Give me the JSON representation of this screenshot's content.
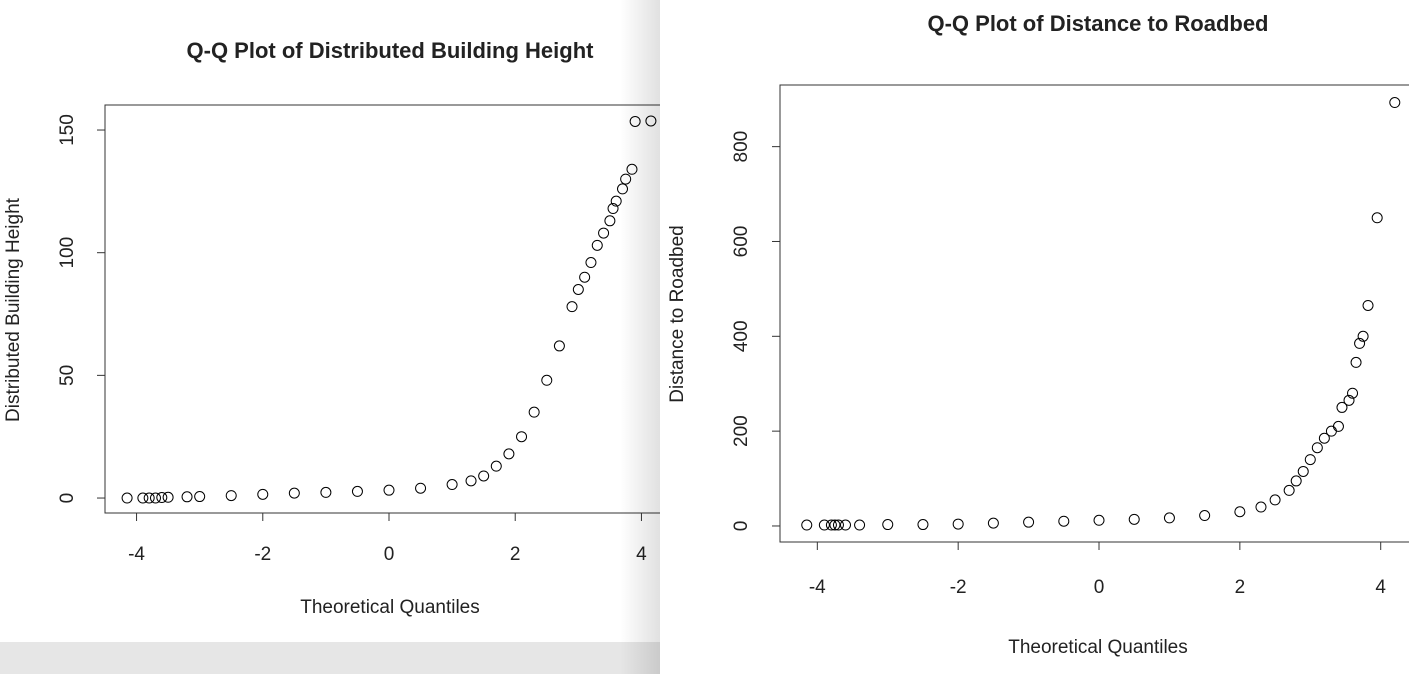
{
  "chart_data": [
    {
      "type": "scatter",
      "title": "Q-Q Plot of Distributed Building Height",
      "x_label": "Theoretical Quantiles",
      "y_label": "Distributed Building Height",
      "color": "#000000",
      "x": [
        -4.15,
        -3.9,
        -3.8,
        -3.7,
        -3.6,
        -3.5,
        -3.2,
        -3,
        -2.5,
        -2,
        -1.5,
        -1,
        -0.5,
        0,
        0.5,
        1,
        1.3,
        1.5,
        1.7,
        1.9,
        2.1,
        2.3,
        2.5,
        2.7,
        2.9,
        3,
        3.1,
        3.2,
        3.3,
        3.4,
        3.5,
        3.55,
        3.6,
        3.7,
        3.75,
        3.85,
        3.9,
        4.15
      ],
      "values": [
        0,
        0,
        0,
        0,
        0.2,
        0.3,
        0.5,
        0.6,
        1,
        1.5,
        2,
        2.3,
        2.7,
        3.2,
        4,
        5.5,
        7,
        9,
        13,
        18,
        25,
        35,
        48,
        62,
        78,
        85,
        90,
        96,
        103,
        108,
        113,
        118,
        121,
        126,
        130,
        134,
        153.5,
        153.7
      ],
      "xlim": [
        -4.5,
        4.5
      ],
      "ylim": [
        -6.1,
        160.2
      ],
      "xticks": [
        -4,
        -2,
        0,
        2,
        4
      ],
      "yticks": [
        0,
        50,
        100,
        150
      ]
    },
    {
      "type": "scatter",
      "title": "Q-Q Plot of Distance to Roadbed",
      "x_label": "Theoretical Quantiles",
      "y_label": "Distance to Roadbed",
      "color": "#000000",
      "x": [
        -4.15,
        -3.9,
        -3.8,
        -3.75,
        -3.7,
        -3.6,
        -3.4,
        -3,
        -2.5,
        -2,
        -1.5,
        -1,
        -0.5,
        0,
        0.5,
        1,
        1.5,
        2,
        2.3,
        2.5,
        2.7,
        2.8,
        2.9,
        3,
        3.1,
        3.2,
        3.3,
        3.4,
        3.45,
        3.55,
        3.6,
        3.65,
        3.7,
        3.75,
        3.82,
        3.95,
        4.2
      ],
      "values": [
        2,
        2,
        2,
        2,
        2,
        2,
        2,
        3,
        3,
        4,
        6,
        8,
        10,
        12,
        14,
        17,
        22,
        30,
        40,
        55,
        75,
        95,
        115,
        140,
        165,
        185,
        200,
        210,
        250,
        265,
        280,
        345,
        385,
        400,
        465,
        650,
        893
      ],
      "xlim": [
        -4.53,
        4.7
      ],
      "ylim": [
        -33.8,
        930
      ],
      "xticks": [
        -4,
        -2,
        0,
        2,
        4
      ],
      "yticks": [
        0,
        200,
        400,
        600,
        800
      ]
    }
  ]
}
